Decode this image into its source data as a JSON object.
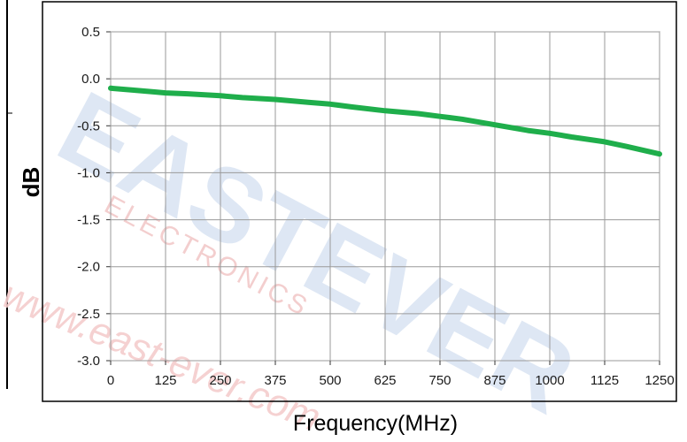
{
  "chart_data": {
    "type": "line",
    "title": "",
    "xlabel": "Frequency(MHz)",
    "ylabel": "dB",
    "xlim": [
      0,
      1250
    ],
    "ylim": [
      -3.0,
      0.5
    ],
    "x_ticks": [
      "0",
      "125",
      "250",
      "375",
      "500",
      "625",
      "750",
      "875",
      "1000",
      "1125",
      "1250"
    ],
    "y_ticks": [
      "0.5",
      "0.0",
      "-0.5",
      "-1.0",
      "-1.5",
      "-2.0",
      "-2.5",
      "-3.0"
    ],
    "grid": true,
    "series": [
      {
        "color": "#1fae4b",
        "x": [
          0,
          50,
          100,
          125,
          175,
          250,
          300,
          375,
          450,
          500,
          550,
          625,
          700,
          750,
          800,
          875,
          950,
          1000,
          1050,
          1125,
          1175,
          1250
        ],
        "y": [
          -0.1,
          -0.12,
          -0.14,
          -0.15,
          -0.16,
          -0.18,
          -0.2,
          -0.22,
          -0.25,
          -0.27,
          -0.3,
          -0.34,
          -0.37,
          -0.4,
          -0.43,
          -0.49,
          -0.55,
          -0.58,
          -0.62,
          -0.67,
          -0.72,
          -0.8
        ]
      }
    ]
  },
  "watermark": {
    "brand": "EASTEVER",
    "sub": "ELECTRONICS",
    "url": "www.east-ever.com"
  },
  "colors": {
    "line": "#1fae4b",
    "grid": "#9a9a9a",
    "watermark": "#d9e4f2",
    "watermark_red": "#f3c6c6"
  }
}
